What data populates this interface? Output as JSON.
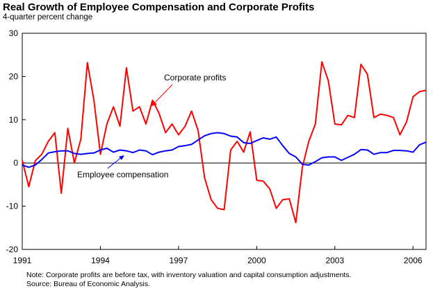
{
  "chart_data": {
    "type": "line",
    "title": "Real Growth of Employee Compensation and Corporate Profits",
    "subtitle": "4-quarter percent change",
    "xlabel": "",
    "ylabel": "",
    "xlim": [
      1991.0,
      2006.5
    ],
    "ylim": [
      -20,
      30
    ],
    "yticks": [
      30,
      20,
      10,
      0,
      -10,
      -20
    ],
    "xticks": [
      1991,
      1994,
      1997,
      2000,
      2003,
      2006
    ],
    "x_tick_labels": [
      "1991",
      "1994",
      "1997",
      "2000",
      "2003",
      "2006"
    ],
    "y_tick_labels": [
      "30",
      "20",
      "10",
      "0",
      "-10",
      "-20"
    ],
    "grid": false,
    "series": [
      {
        "name": "Corporate profits",
        "color": "#ff0000",
        "x": [
          1991.0,
          1991.25,
          1991.5,
          1991.75,
          1992.0,
          1992.25,
          1992.5,
          1992.75,
          1993.0,
          1993.25,
          1993.5,
          1993.75,
          1994.0,
          1994.25,
          1994.5,
          1994.75,
          1995.0,
          1995.25,
          1995.5,
          1995.75,
          1996.0,
          1996.25,
          1996.5,
          1996.75,
          1997.0,
          1997.25,
          1997.5,
          1997.75,
          1998.0,
          1998.25,
          1998.5,
          1998.75,
          1999.0,
          1999.25,
          1999.5,
          1999.75,
          2000.0,
          2000.25,
          2000.5,
          2000.75,
          2001.0,
          2001.25,
          2001.5,
          2001.75,
          2002.0,
          2002.25,
          2002.5,
          2002.75,
          2003.0,
          2003.25,
          2003.5,
          2003.75,
          2004.0,
          2004.25,
          2004.5,
          2004.75,
          2005.0,
          2005.25,
          2005.5,
          2005.75,
          2006.0,
          2006.25,
          2006.5
        ],
        "values": [
          0.6,
          -5.5,
          0.5,
          2.0,
          5.0,
          7.0,
          -7.0,
          8.0,
          0.0,
          5.5,
          23.2,
          14.5,
          2.0,
          9.0,
          13.0,
          8.5,
          22.0,
          12.0,
          13.0,
          9.0,
          14.5,
          11.5,
          7.0,
          9.0,
          6.5,
          8.5,
          12.0,
          7.5,
          -3.5,
          -8.5,
          -10.5,
          -10.8,
          3.0,
          5.0,
          2.5,
          7.2,
          -4.0,
          -4.2,
          -6.0,
          -10.5,
          -8.5,
          -8.3,
          -13.8,
          -1.0,
          5.0,
          9.0,
          23.4,
          19.0,
          9.0,
          8.8,
          11.0,
          10.5,
          22.8,
          20.5,
          10.5,
          11.3,
          11.0,
          10.5,
          6.5,
          9.5,
          15.3,
          16.5,
          16.8
        ]
      },
      {
        "name": "Employee compensation",
        "color": "#0000ff",
        "x": [
          1991.0,
          1991.25,
          1991.5,
          1991.75,
          1992.0,
          1992.25,
          1992.5,
          1992.75,
          1993.0,
          1993.25,
          1993.5,
          1993.75,
          1994.0,
          1994.25,
          1994.5,
          1994.75,
          1995.0,
          1995.25,
          1995.5,
          1995.75,
          1996.0,
          1996.25,
          1996.5,
          1996.75,
          1997.0,
          1997.25,
          1997.5,
          1997.75,
          1998.0,
          1998.25,
          1998.5,
          1998.75,
          1999.0,
          1999.25,
          1999.5,
          1999.75,
          2000.0,
          2000.25,
          2000.5,
          2000.75,
          2001.0,
          2001.25,
          2001.5,
          2001.75,
          2002.0,
          2002.25,
          2002.5,
          2002.75,
          2003.0,
          2003.25,
          2003.5,
          2003.75,
          2004.0,
          2004.25,
          2004.5,
          2004.75,
          2005.0,
          2005.25,
          2005.5,
          2005.75,
          2006.0,
          2006.25,
          2006.5
        ],
        "values": [
          -0.5,
          -1.0,
          -0.5,
          0.8,
          2.3,
          2.6,
          2.8,
          2.8,
          2.2,
          2.0,
          2.2,
          2.3,
          3.0,
          3.4,
          2.5,
          3.0,
          2.8,
          2.4,
          3.0,
          2.8,
          1.9,
          2.5,
          2.8,
          3.0,
          3.8,
          4.0,
          4.3,
          5.3,
          6.3,
          6.8,
          7.0,
          6.8,
          6.2,
          6.0,
          4.7,
          4.5,
          5.2,
          5.8,
          5.5,
          6.0,
          4.0,
          2.2,
          1.4,
          -0.3,
          -0.5,
          0.3,
          1.2,
          1.4,
          1.4,
          0.6,
          1.3,
          2.0,
          3.1,
          3.0,
          2.0,
          2.4,
          2.4,
          2.9,
          2.9,
          2.8,
          2.5,
          4.2,
          4.8
        ]
      }
    ],
    "annotations": [
      {
        "text": "Corporate profits",
        "series": "Corporate profits"
      },
      {
        "text": "Employee compensation",
        "series": "Employee compensation"
      }
    ]
  },
  "footer": {
    "note": "Note:  Corporate profits are before tax, with inventory valuation and capital consumption adjustments.",
    "source": "Source: Bureau of Economic Analysis."
  }
}
